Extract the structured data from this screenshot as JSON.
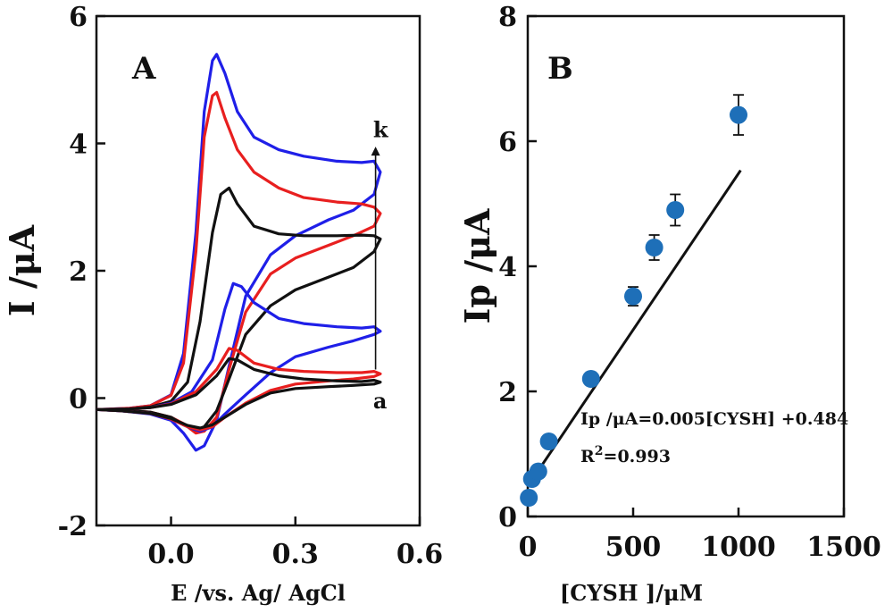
{
  "chart_data": [
    {
      "type": "line",
      "panel_label": "A",
      "xlabel": "E /vs. Ag/ AgCl",
      "ylabel": "I /μA",
      "xlim": [
        -0.18,
        0.6
      ],
      "ylim": [
        -2,
        6
      ],
      "xticks": [
        "0.0",
        "0.3",
        "0.6"
      ],
      "xtick_values": [
        0.0,
        0.3,
        0.6
      ],
      "yticks": [
        "-2",
        "0",
        "2",
        "4",
        "6"
      ],
      "ytick_values": [
        -2,
        0,
        2,
        4,
        6
      ],
      "grid": false,
      "arrow": {
        "from": [
          0.5,
          0.45
        ],
        "to": [
          0.5,
          3.95
        ]
      },
      "annotations": [
        {
          "text": "k",
          "x": 0.505,
          "y": 4.1
        },
        {
          "text": "a",
          "x": 0.505,
          "y": -0.02
        }
      ],
      "series": [
        {
          "color": "#1f1fe8",
          "forward": [
            [
              -0.18,
              -0.18
            ],
            [
              -0.1,
              -0.16
            ],
            [
              -0.05,
              -0.12
            ],
            [
              0.0,
              0.05
            ],
            [
              0.03,
              0.7
            ],
            [
              0.06,
              2.6
            ],
            [
              0.08,
              4.5
            ],
            [
              0.1,
              5.3
            ],
            [
              0.11,
              5.4
            ],
            [
              0.13,
              5.1
            ],
            [
              0.16,
              4.5
            ],
            [
              0.2,
              4.1
            ],
            [
              0.26,
              3.9
            ],
            [
              0.32,
              3.8
            ],
            [
              0.4,
              3.72
            ],
            [
              0.46,
              3.7
            ],
            [
              0.49,
              3.72
            ],
            [
              0.505,
              3.55
            ]
          ],
          "reverse": [
            [
              0.505,
              3.55
            ],
            [
              0.49,
              3.2
            ],
            [
              0.44,
              2.95
            ],
            [
              0.38,
              2.8
            ],
            [
              0.3,
              2.55
            ],
            [
              0.24,
              2.25
            ],
            [
              0.18,
              1.6
            ],
            [
              0.14,
              0.5
            ],
            [
              0.11,
              -0.35
            ],
            [
              0.08,
              -0.75
            ],
            [
              0.06,
              -0.82
            ],
            [
              0.03,
              -0.55
            ],
            [
              0.0,
              -0.35
            ],
            [
              -0.05,
              -0.25
            ],
            [
              -0.12,
              -0.2
            ],
            [
              -0.18,
              -0.18
            ]
          ]
        },
        {
          "color": "#e81f1f",
          "forward": [
            [
              -0.18,
              -0.18
            ],
            [
              -0.1,
              -0.16
            ],
            [
              -0.05,
              -0.12
            ],
            [
              0.0,
              0.04
            ],
            [
              0.03,
              0.55
            ],
            [
              0.06,
              2.3
            ],
            [
              0.08,
              4.1
            ],
            [
              0.1,
              4.75
            ],
            [
              0.11,
              4.8
            ],
            [
              0.13,
              4.4
            ],
            [
              0.16,
              3.9
            ],
            [
              0.2,
              3.55
            ],
            [
              0.26,
              3.3
            ],
            [
              0.32,
              3.15
            ],
            [
              0.4,
              3.08
            ],
            [
              0.46,
              3.05
            ],
            [
              0.49,
              3.0
            ],
            [
              0.505,
              2.9
            ]
          ],
          "reverse": [
            [
              0.505,
              2.9
            ],
            [
              0.49,
              2.7
            ],
            [
              0.44,
              2.55
            ],
            [
              0.38,
              2.4
            ],
            [
              0.3,
              2.2
            ],
            [
              0.24,
              1.95
            ],
            [
              0.18,
              1.35
            ],
            [
              0.14,
              0.45
            ],
            [
              0.11,
              -0.3
            ],
            [
              0.08,
              -0.52
            ],
            [
              0.06,
              -0.55
            ],
            [
              0.03,
              -0.4
            ],
            [
              0.0,
              -0.3
            ],
            [
              -0.05,
              -0.22
            ],
            [
              -0.12,
              -0.19
            ],
            [
              -0.18,
              -0.18
            ]
          ]
        },
        {
          "color": "#111111",
          "forward": [
            [
              -0.18,
              -0.18
            ],
            [
              -0.1,
              -0.17
            ],
            [
              -0.05,
              -0.14
            ],
            [
              0.0,
              -0.05
            ],
            [
              0.04,
              0.25
            ],
            [
              0.07,
              1.2
            ],
            [
              0.1,
              2.6
            ],
            [
              0.12,
              3.2
            ],
            [
              0.14,
              3.3
            ],
            [
              0.16,
              3.05
            ],
            [
              0.2,
              2.7
            ],
            [
              0.26,
              2.58
            ],
            [
              0.32,
              2.55
            ],
            [
              0.4,
              2.55
            ],
            [
              0.46,
              2.56
            ],
            [
              0.49,
              2.55
            ],
            [
              0.505,
              2.5
            ]
          ],
          "reverse": [
            [
              0.505,
              2.5
            ],
            [
              0.49,
              2.3
            ],
            [
              0.44,
              2.05
            ],
            [
              0.38,
              1.9
            ],
            [
              0.3,
              1.7
            ],
            [
              0.24,
              1.45
            ],
            [
              0.18,
              1.0
            ],
            [
              0.14,
              0.3
            ],
            [
              0.11,
              -0.2
            ],
            [
              0.08,
              -0.45
            ],
            [
              0.06,
              -0.5
            ],
            [
              0.03,
              -0.42
            ],
            [
              0.0,
              -0.3
            ],
            [
              -0.05,
              -0.22
            ],
            [
              -0.12,
              -0.19
            ],
            [
              -0.18,
              -0.18
            ]
          ]
        },
        {
          "color": "#1f1fe8",
          "forward": [
            [
              -0.18,
              -0.18
            ],
            [
              -0.1,
              -0.17
            ],
            [
              -0.05,
              -0.15
            ],
            [
              0.0,
              -0.08
            ],
            [
              0.05,
              0.1
            ],
            [
              0.1,
              0.6
            ],
            [
              0.13,
              1.4
            ],
            [
              0.15,
              1.8
            ],
            [
              0.17,
              1.75
            ],
            [
              0.2,
              1.5
            ],
            [
              0.26,
              1.25
            ],
            [
              0.32,
              1.17
            ],
            [
              0.4,
              1.12
            ],
            [
              0.46,
              1.1
            ],
            [
              0.49,
              1.12
            ],
            [
              0.505,
              1.05
            ]
          ],
          "reverse": [
            [
              0.505,
              1.05
            ],
            [
              0.49,
              1.0
            ],
            [
              0.44,
              0.9
            ],
            [
              0.38,
              0.8
            ],
            [
              0.3,
              0.65
            ],
            [
              0.24,
              0.4
            ],
            [
              0.18,
              0.05
            ],
            [
              0.13,
              -0.25
            ],
            [
              0.1,
              -0.45
            ],
            [
              0.07,
              -0.52
            ],
            [
              0.04,
              -0.45
            ],
            [
              0.0,
              -0.33
            ],
            [
              -0.05,
              -0.24
            ],
            [
              -0.12,
              -0.2
            ],
            [
              -0.18,
              -0.18
            ]
          ]
        },
        {
          "color": "#e81f1f",
          "forward": [
            [
              -0.18,
              -0.18
            ],
            [
              -0.1,
              -0.17
            ],
            [
              -0.05,
              -0.15
            ],
            [
              0.0,
              -0.09
            ],
            [
              0.06,
              0.1
            ],
            [
              0.11,
              0.45
            ],
            [
              0.14,
              0.78
            ],
            [
              0.16,
              0.75
            ],
            [
              0.2,
              0.55
            ],
            [
              0.26,
              0.45
            ],
            [
              0.32,
              0.42
            ],
            [
              0.4,
              0.4
            ],
            [
              0.46,
              0.4
            ],
            [
              0.49,
              0.42
            ],
            [
              0.505,
              0.38
            ]
          ],
          "reverse": [
            [
              0.505,
              0.38
            ],
            [
              0.49,
              0.34
            ],
            [
              0.44,
              0.3
            ],
            [
              0.38,
              0.27
            ],
            [
              0.3,
              0.22
            ],
            [
              0.24,
              0.12
            ],
            [
              0.18,
              -0.08
            ],
            [
              0.13,
              -0.3
            ],
            [
              0.1,
              -0.45
            ],
            [
              0.07,
              -0.5
            ],
            [
              0.04,
              -0.45
            ],
            [
              0.0,
              -0.33
            ],
            [
              -0.05,
              -0.24
            ],
            [
              -0.12,
              -0.2
            ],
            [
              -0.18,
              -0.18
            ]
          ]
        },
        {
          "color": "#111111",
          "forward": [
            [
              -0.18,
              -0.18
            ],
            [
              -0.1,
              -0.17
            ],
            [
              -0.05,
              -0.15
            ],
            [
              0.0,
              -0.1
            ],
            [
              0.06,
              0.05
            ],
            [
              0.11,
              0.35
            ],
            [
              0.14,
              0.62
            ],
            [
              0.16,
              0.6
            ],
            [
              0.2,
              0.45
            ],
            [
              0.26,
              0.35
            ],
            [
              0.32,
              0.3
            ],
            [
              0.4,
              0.27
            ],
            [
              0.46,
              0.26
            ],
            [
              0.49,
              0.28
            ],
            [
              0.505,
              0.25
            ]
          ],
          "reverse": [
            [
              0.505,
              0.25
            ],
            [
              0.49,
              0.22
            ],
            [
              0.44,
              0.2
            ],
            [
              0.38,
              0.18
            ],
            [
              0.3,
              0.15
            ],
            [
              0.24,
              0.08
            ],
            [
              0.18,
              -0.1
            ],
            [
              0.13,
              -0.3
            ],
            [
              0.1,
              -0.42
            ],
            [
              0.07,
              -0.47
            ],
            [
              0.04,
              -0.43
            ],
            [
              0.0,
              -0.32
            ],
            [
              -0.05,
              -0.24
            ],
            [
              -0.12,
              -0.2
            ],
            [
              -0.18,
              -0.18
            ]
          ]
        }
      ]
    },
    {
      "type": "scatter",
      "panel_label": "B",
      "xlabel": "[CYSH ]/μM",
      "ylabel": "Ip /μA",
      "xlim": [
        0,
        1500
      ],
      "ylim": [
        0,
        8
      ],
      "xticks": [
        "0",
        "500",
        "1000",
        "1500"
      ],
      "xtick_values": [
        0,
        500,
        1000,
        1500
      ],
      "yticks": [
        "0",
        "2",
        "4",
        "6",
        "8"
      ],
      "ytick_values": [
        0,
        2,
        4,
        6,
        8
      ],
      "grid": false,
      "marker_color": "#1e6fb8",
      "points": [
        {
          "x": 5,
          "y": 0.3,
          "err": 0.1
        },
        {
          "x": 20,
          "y": 0.6,
          "err": 0.1
        },
        {
          "x": 50,
          "y": 0.72,
          "err": 0.1
        },
        {
          "x": 100,
          "y": 1.2,
          "err": 0.1
        },
        {
          "x": 300,
          "y": 2.2,
          "err": 0.1
        },
        {
          "x": 500,
          "y": 3.52,
          "err": 0.15
        },
        {
          "x": 600,
          "y": 4.3,
          "err": 0.2
        },
        {
          "x": 700,
          "y": 4.9,
          "err": 0.25
        },
        {
          "x": 1000,
          "y": 6.42,
          "err": 0.32
        }
      ],
      "fit_line": {
        "x": [
          0,
          1010
        ],
        "y": [
          0.484,
          5.534
        ]
      },
      "equation": "Ip /μA=0.005[CYSH] +0.484",
      "r2_prefix": "R",
      "r2_sup": "2",
      "r2_value": "=0.993"
    }
  ]
}
